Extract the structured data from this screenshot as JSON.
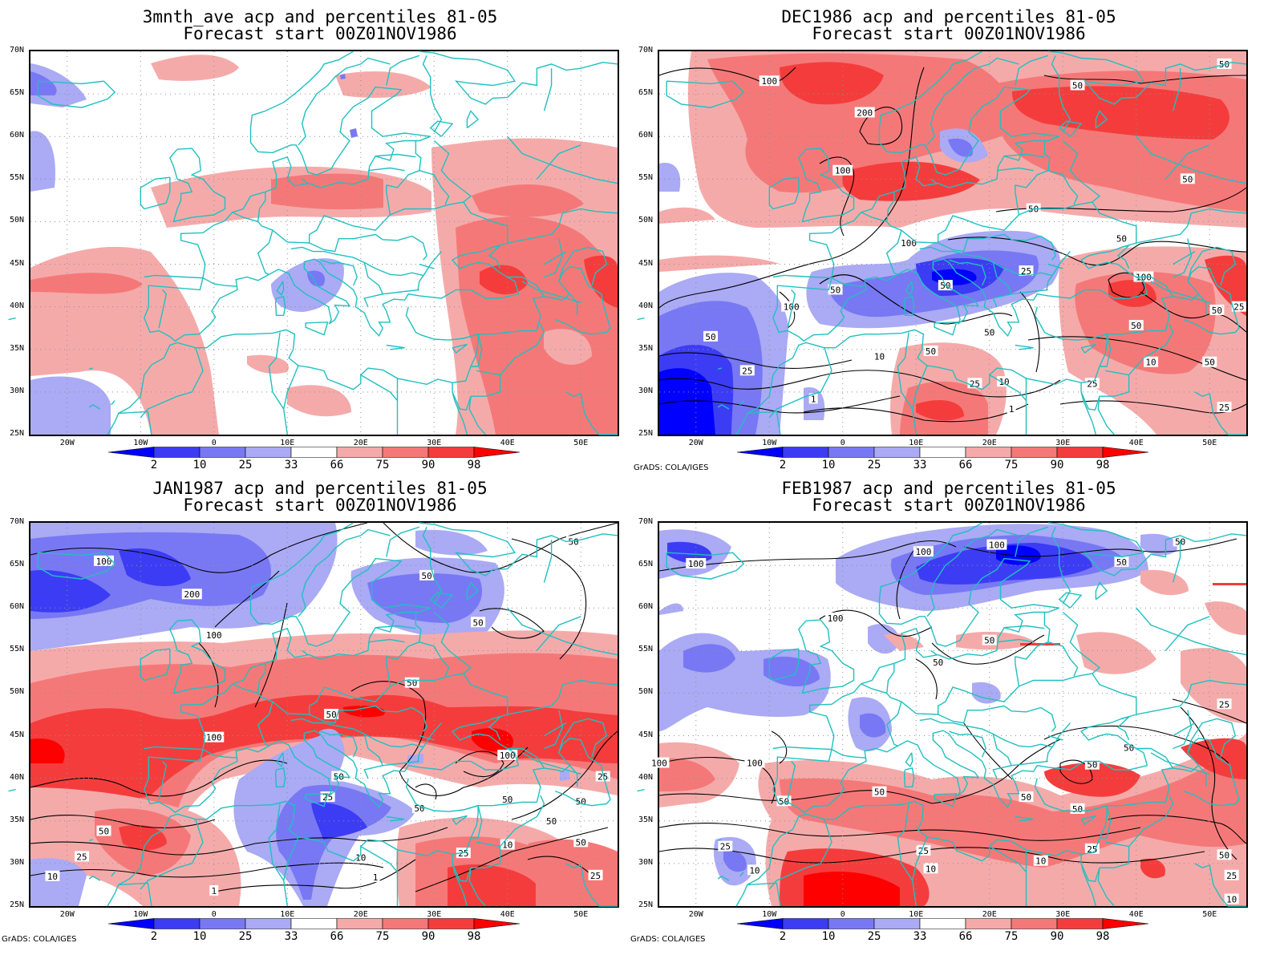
{
  "credit": "GrADS: COLA/IGES",
  "lat_ticks": [
    "70N",
    "65N",
    "60N",
    "55N",
    "50N",
    "45N",
    "40N",
    "35N",
    "30N",
    "25N"
  ],
  "lon_ticks": [
    "20W",
    "10W",
    "0",
    "10E",
    "20E",
    "30E",
    "40E",
    "50E"
  ],
  "colorbar": {
    "labels": [
      "2",
      "10",
      "25",
      "33",
      "66",
      "75",
      "90",
      "98"
    ],
    "colors": [
      "#0000ff",
      "#3c3cf5",
      "#7878f5",
      "#aaaaf5",
      "#ffffff",
      "#f5aaaa",
      "#f57878",
      "#f53c3c",
      "#ff0000"
    ]
  },
  "colors": {
    "coast": "#20c0c0",
    "grid": "#909090",
    "contour": "#000000",
    "blue_light": "#aaaaf5",
    "blue_mid": "#7878f5",
    "blue_dark": "#3c3cf5",
    "blue_max": "#0000ff",
    "red_light": "#f5aaaa",
    "red_mid": "#f57878",
    "red_dark": "#f53c3c",
    "red_max": "#ff0000"
  },
  "panels": [
    {
      "id": "p1",
      "title_line1": "3mnth_ave acp and percentiles 81-05",
      "title_line2": "Forecast start 00Z01NOV1986",
      "show_credit": false,
      "contour_labels": []
    },
    {
      "id": "p2",
      "title_line1": "DEC1986 acp and percentiles 81-05",
      "title_line2": "Forecast start 00Z01NOV1986",
      "show_credit": true,
      "contour_labels": [
        {
          "text": "100",
          "lon": -10,
          "lat": 66.5
        },
        {
          "text": "200",
          "lon": 3,
          "lat": 62.8
        },
        {
          "text": "100",
          "lon": 0,
          "lat": 56
        },
        {
          "text": "50",
          "lon": 32,
          "lat": 66
        },
        {
          "text": "50",
          "lon": 52,
          "lat": 68.5
        },
        {
          "text": "50",
          "lon": 47,
          "lat": 55
        },
        {
          "text": "50",
          "lon": 26,
          "lat": 51.5
        },
        {
          "text": "100",
          "lon": 9,
          "lat": 47.5
        },
        {
          "text": "50",
          "lon": 38,
          "lat": 48
        },
        {
          "text": "25",
          "lon": 25,
          "lat": 44.2
        },
        {
          "text": "50",
          "lon": -1,
          "lat": 42
        },
        {
          "text": "50",
          "lon": 14,
          "lat": 42.5
        },
        {
          "text": "100",
          "lon": -7,
          "lat": 40
        },
        {
          "text": "50",
          "lon": 20,
          "lat": 37
        },
        {
          "text": "100",
          "lon": 41,
          "lat": 43.5
        },
        {
          "text": "50",
          "lon": -18,
          "lat": 36.5
        },
        {
          "text": "50",
          "lon": 12,
          "lat": 34.8
        },
        {
          "text": "10",
          "lon": 5,
          "lat": 34.2
        },
        {
          "text": "25",
          "lon": -13,
          "lat": 32.5
        },
        {
          "text": "25",
          "lon": 18,
          "lat": 31
        },
        {
          "text": "10",
          "lon": 22,
          "lat": 31.2
        },
        {
          "text": "50",
          "lon": 40,
          "lat": 37.8
        },
        {
          "text": "50",
          "lon": 51,
          "lat": 39.6
        },
        {
          "text": "25",
          "lon": 54,
          "lat": 40
        },
        {
          "text": "10",
          "lon": 42,
          "lat": 33.5
        },
        {
          "text": "50",
          "lon": 50,
          "lat": 33.5
        },
        {
          "text": "25",
          "lon": 34,
          "lat": 31
        },
        {
          "text": "25",
          "lon": 52,
          "lat": 28.2
        },
        {
          "text": "1",
          "lon": -4,
          "lat": 29.2
        },
        {
          "text": "1",
          "lon": 23,
          "lat": 28
        }
      ]
    },
    {
      "id": "p3",
      "title_line1": "JAN1987 acp and percentiles 81-05",
      "title_line2": "Forecast start 00Z01NOV1986",
      "show_credit": true,
      "contour_labels": [
        {
          "text": "100",
          "lon": -15,
          "lat": 65.5
        },
        {
          "text": "200",
          "lon": -3,
          "lat": 61.6
        },
        {
          "text": "50",
          "lon": 29,
          "lat": 63.8
        },
        {
          "text": "50",
          "lon": 49,
          "lat": 67.8
        },
        {
          "text": "50",
          "lon": 36,
          "lat": 58.3
        },
        {
          "text": "100",
          "lon": 0,
          "lat": 56.8
        },
        {
          "text": "50",
          "lon": 27,
          "lat": 51.2
        },
        {
          "text": "50",
          "lon": 16,
          "lat": 47.5
        },
        {
          "text": "100",
          "lon": 0,
          "lat": 44.8
        },
        {
          "text": "100",
          "lon": 40,
          "lat": 42.7
        },
        {
          "text": "50",
          "lon": 17,
          "lat": 40.2
        },
        {
          "text": "25",
          "lon": 15.5,
          "lat": 37.8
        },
        {
          "text": "50",
          "lon": 28,
          "lat": 36.5
        },
        {
          "text": "25",
          "lon": 53,
          "lat": 40.2
        },
        {
          "text": "50",
          "lon": 50,
          "lat": 37.3
        },
        {
          "text": "50",
          "lon": 40,
          "lat": 37.5
        },
        {
          "text": "50",
          "lon": 46,
          "lat": 35
        },
        {
          "text": "50",
          "lon": -15,
          "lat": 33.8
        },
        {
          "text": "25",
          "lon": -18,
          "lat": 30.8
        },
        {
          "text": "50",
          "lon": 50,
          "lat": 32.5
        },
        {
          "text": "10",
          "lon": 40,
          "lat": 32.2
        },
        {
          "text": "25",
          "lon": 34,
          "lat": 31.2
        },
        {
          "text": "10",
          "lon": 20,
          "lat": 30.7
        },
        {
          "text": "25",
          "lon": 52,
          "lat": 28.6
        },
        {
          "text": "10",
          "lon": -22,
          "lat": 28.5
        },
        {
          "text": "1",
          "lon": 22,
          "lat": 28.4
        },
        {
          "text": "1",
          "lon": 0,
          "lat": 26.8
        }
      ]
    },
    {
      "id": "p4",
      "title_line1": "FEB1987 acp and percentiles 81-05",
      "title_line2": "Forecast start 00Z01NOV1986",
      "show_credit": true,
      "contour_labels": [
        {
          "text": "100",
          "lon": -20,
          "lat": 65.2
        },
        {
          "text": "100",
          "lon": 11,
          "lat": 66.6
        },
        {
          "text": "100",
          "lon": 21,
          "lat": 67.4
        },
        {
          "text": "50",
          "lon": 46,
          "lat": 67.8
        },
        {
          "text": "50",
          "lon": 38,
          "lat": 65.4
        },
        {
          "text": "100",
          "lon": -1,
          "lat": 58.8
        },
        {
          "text": "50",
          "lon": 20,
          "lat": 56.2
        },
        {
          "text": "50",
          "lon": 13,
          "lat": 53.6
        },
        {
          "text": "25",
          "lon": 52,
          "lat": 48.7
        },
        {
          "text": "100",
          "lon": -25,
          "lat": 41.8
        },
        {
          "text": "100",
          "lon": -12,
          "lat": 41.8
        },
        {
          "text": "50",
          "lon": 39,
          "lat": 43.6
        },
        {
          "text": "50",
          "lon": 34,
          "lat": 41.6
        },
        {
          "text": "50",
          "lon": 25,
          "lat": 37.8
        },
        {
          "text": "50",
          "lon": 5,
          "lat": 38.4
        },
        {
          "text": "50",
          "lon": -8,
          "lat": 37.3
        },
        {
          "text": "50",
          "lon": 32,
          "lat": 36.4
        },
        {
          "text": "25",
          "lon": -16,
          "lat": 32
        },
        {
          "text": "25",
          "lon": 34,
          "lat": 31.7
        },
        {
          "text": "25",
          "lon": 11,
          "lat": 31.5
        },
        {
          "text": "10",
          "lon": -12,
          "lat": 29.2
        },
        {
          "text": "10",
          "lon": 12,
          "lat": 29.4
        },
        {
          "text": "10",
          "lon": 27,
          "lat": 30.3
        },
        {
          "text": "50",
          "lon": 52,
          "lat": 31
        },
        {
          "text": "25",
          "lon": 53,
          "lat": 28.6
        },
        {
          "text": "10",
          "lon": 53,
          "lat": 25.8
        }
      ]
    }
  ]
}
